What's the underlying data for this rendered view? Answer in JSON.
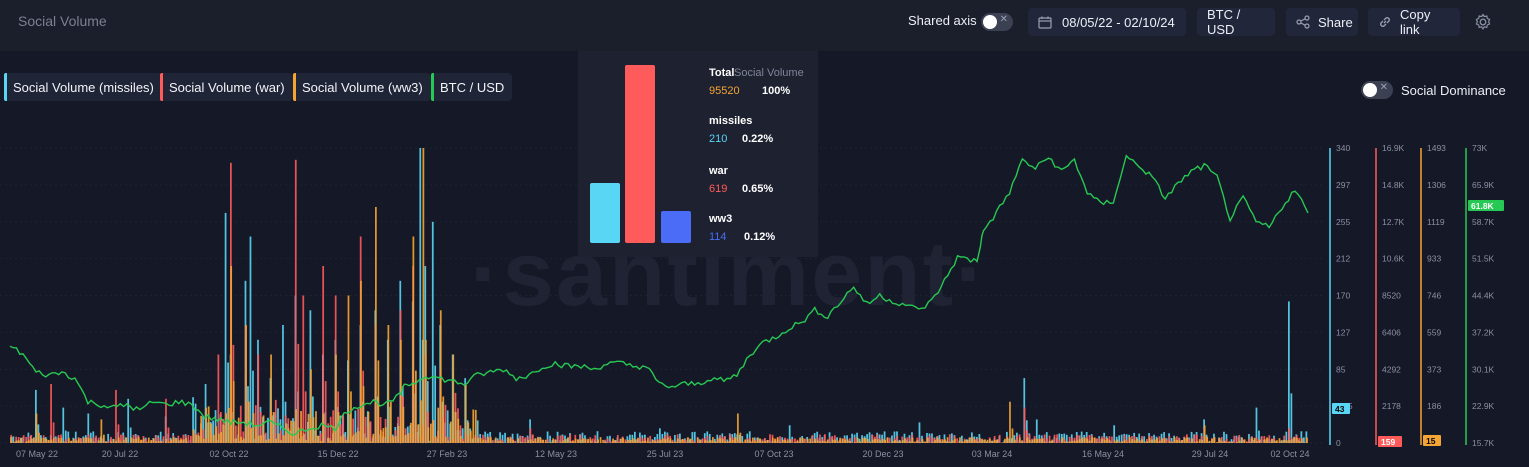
{
  "header": {
    "title": "Social Volume",
    "shared_axis_label": "Shared axis",
    "date_range": "08/05/22 - 02/10/24",
    "pair": "BTC / USD",
    "share_label": "Share",
    "copy_link_label": "Copy link"
  },
  "legend": [
    {
      "label": "Social Volume (missiles)",
      "color": "#5ad6f5"
    },
    {
      "label": "Social Volume (war)",
      "color": "#ff5b5b"
    },
    {
      "label": "Social Volume (ww3)",
      "color": "#f5a534"
    },
    {
      "label": "BTC / USD",
      "color": "#26c953"
    }
  ],
  "social_dominance_label": "Social Dominance",
  "watermark": "·santiment·",
  "tooltip": {
    "total_label": "Total",
    "total_metric": "Social Volume",
    "total_value": "95520",
    "total_pct": "100%",
    "items": [
      {
        "label": "missiles",
        "value": "210",
        "pct": "0.22%",
        "color": "#5ad6f5"
      },
      {
        "label": "war",
        "value": "619",
        "pct": "0.65%",
        "color": "#ff5b5b"
      },
      {
        "label": "ww3",
        "value": "114",
        "pct": "0.12%",
        "color": "#4a6cf7"
      }
    ],
    "bars": [
      {
        "name": "missiles",
        "color": "#5ad6f5"
      },
      {
        "name": "war",
        "color": "#ff5b5b"
      },
      {
        "name": "ww3",
        "color": "#4a6cf7"
      }
    ]
  },
  "chart_data": {
    "type": "bar",
    "x_ticks": [
      "07 May 22",
      "20 Jul 22",
      "02 Oct 22",
      "15 Dec 22",
      "27 Feb 23",
      "12 May 23",
      "25 Jul 23",
      "07 Oct 23",
      "20 Dec 23",
      "03 Mar 24",
      "16 May 24",
      "29 Jul 24",
      "02 Oct 24"
    ],
    "axes": [
      {
        "name": "missiles",
        "color": "#5ad6f5",
        "ticks": [
          "340",
          "297",
          "255",
          "212",
          "170",
          "127",
          "85",
          "42.5",
          "0"
        ],
        "current": "43"
      },
      {
        "name": "war",
        "color": "#ff5b5b",
        "ticks": [
          "16.9K",
          "14.8K",
          "12.7K",
          "10.6K",
          "8520",
          "6406",
          "4292",
          "2178",
          "0"
        ],
        "current": "159"
      },
      {
        "name": "ww3",
        "color": "#f5a534",
        "ticks": [
          "1493",
          "1306",
          "1119",
          "933",
          "746",
          "559",
          "373",
          "186",
          "0"
        ],
        "current": "15"
      },
      {
        "name": "BTC / USD",
        "color": "#26c953",
        "ticks": [
          "73K",
          "65.9K",
          "58.7K",
          "51.5K",
          "44.4K",
          "37.2K",
          "30.1K",
          "22.9K",
          "15.7K"
        ],
        "current": "61.8K"
      }
    ],
    "series": [
      {
        "name": "Social Volume (missiles)",
        "color": "#5ad6f5",
        "spikes": [
          [
            0.02,
            0.18
          ],
          [
            0.04,
            0.12
          ],
          [
            0.06,
            0.1
          ],
          [
            0.09,
            0.15
          ],
          [
            0.12,
            0.09
          ],
          [
            0.15,
            0.2
          ],
          [
            0.165,
            0.78
          ],
          [
            0.17,
            0.3
          ],
          [
            0.18,
            0.55
          ],
          [
            0.185,
            0.7
          ],
          [
            0.19,
            0.35
          ],
          [
            0.2,
            0.22
          ],
          [
            0.21,
            0.4
          ],
          [
            0.22,
            0.5
          ],
          [
            0.23,
            0.45
          ],
          [
            0.24,
            0.3
          ],
          [
            0.25,
            0.35
          ],
          [
            0.26,
            0.28
          ],
          [
            0.27,
            0.4
          ],
          [
            0.28,
            0.45
          ],
          [
            0.29,
            0.35
          ],
          [
            0.3,
            0.55
          ],
          [
            0.31,
            0.48
          ],
          [
            0.315,
            1.0
          ],
          [
            0.32,
            0.6
          ],
          [
            0.325,
            0.75
          ],
          [
            0.33,
            0.4
          ],
          [
            0.34,
            0.3
          ],
          [
            0.35,
            0.22
          ],
          [
            0.4,
            0.08
          ],
          [
            0.5,
            0.05
          ],
          [
            0.6,
            0.06
          ],
          [
            0.7,
            0.07
          ],
          [
            0.78,
            0.22
          ],
          [
            0.79,
            0.08
          ],
          [
            0.85,
            0.06
          ],
          [
            0.92,
            0.08
          ],
          [
            0.96,
            0.12
          ],
          [
            0.985,
            0.48
          ]
        ],
        "base": 0.04
      },
      {
        "name": "Social Volume (war)",
        "color": "#ff5b5b",
        "spikes": [
          [
            0.03,
            0.2
          ],
          [
            0.08,
            0.18
          ],
          [
            0.12,
            0.15
          ],
          [
            0.16,
            0.3
          ],
          [
            0.17,
            0.95
          ],
          [
            0.18,
            0.4
          ],
          [
            0.19,
            0.3
          ],
          [
            0.22,
            0.96
          ],
          [
            0.225,
            0.5
          ],
          [
            0.24,
            0.6
          ],
          [
            0.25,
            0.5
          ],
          [
            0.27,
            0.7
          ],
          [
            0.28,
            0.4
          ],
          [
            0.3,
            0.45
          ],
          [
            0.31,
            0.6
          ],
          [
            0.32,
            0.3
          ],
          [
            0.33,
            0.25
          ],
          [
            0.4,
            0.05
          ],
          [
            0.78,
            0.12
          ],
          [
            0.92,
            0.05
          ],
          [
            0.985,
            0.05
          ]
        ],
        "base": 0.03
      },
      {
        "name": "Social Volume (ww3)",
        "color": "#f5a534",
        "spikes": [
          [
            0.02,
            0.1
          ],
          [
            0.07,
            0.08
          ],
          [
            0.15,
            0.12
          ],
          [
            0.17,
            0.6
          ],
          [
            0.18,
            0.4
          ],
          [
            0.2,
            0.3
          ],
          [
            0.23,
            0.25
          ],
          [
            0.25,
            0.3
          ],
          [
            0.26,
            0.5
          ],
          [
            0.27,
            0.55
          ],
          [
            0.28,
            0.8
          ],
          [
            0.29,
            0.4
          ],
          [
            0.3,
            0.35
          ],
          [
            0.31,
            0.7
          ],
          [
            0.318,
            1.0
          ],
          [
            0.33,
            0.45
          ],
          [
            0.34,
            0.3
          ],
          [
            0.35,
            0.2
          ],
          [
            0.56,
            0.1
          ],
          [
            0.77,
            0.14
          ],
          [
            0.92,
            0.06
          ]
        ],
        "base": 0.02
      }
    ],
    "btc": [
      [
        0.0,
        0.33
      ],
      [
        0.01,
        0.3
      ],
      [
        0.02,
        0.24
      ],
      [
        0.03,
        0.23
      ],
      [
        0.04,
        0.24
      ],
      [
        0.05,
        0.22
      ],
      [
        0.06,
        0.14
      ],
      [
        0.07,
        0.13
      ],
      [
        0.08,
        0.12
      ],
      [
        0.09,
        0.13
      ],
      [
        0.1,
        0.11
      ],
      [
        0.11,
        0.14
      ],
      [
        0.12,
        0.13
      ],
      [
        0.13,
        0.14
      ],
      [
        0.14,
        0.13
      ],
      [
        0.15,
        0.09
      ],
      [
        0.16,
        0.08
      ],
      [
        0.17,
        0.07
      ],
      [
        0.18,
        0.07
      ],
      [
        0.19,
        0.06
      ],
      [
        0.2,
        0.07
      ],
      [
        0.21,
        0.05
      ],
      [
        0.22,
        0.03
      ],
      [
        0.23,
        0.05
      ],
      [
        0.24,
        0.06
      ],
      [
        0.25,
        0.05
      ],
      [
        0.26,
        0.11
      ],
      [
        0.27,
        0.13
      ],
      [
        0.28,
        0.14
      ],
      [
        0.29,
        0.13
      ],
      [
        0.3,
        0.16
      ],
      [
        0.305,
        0.2
      ],
      [
        0.31,
        0.2
      ],
      [
        0.32,
        0.23
      ],
      [
        0.33,
        0.22
      ],
      [
        0.34,
        0.21
      ],
      [
        0.35,
        0.2
      ],
      [
        0.36,
        0.23
      ],
      [
        0.37,
        0.24
      ],
      [
        0.38,
        0.25
      ],
      [
        0.39,
        0.22
      ],
      [
        0.4,
        0.23
      ],
      [
        0.41,
        0.26
      ],
      [
        0.42,
        0.27
      ],
      [
        0.43,
        0.26
      ],
      [
        0.44,
        0.26
      ],
      [
        0.45,
        0.25
      ],
      [
        0.46,
        0.27
      ],
      [
        0.47,
        0.27
      ],
      [
        0.48,
        0.26
      ],
      [
        0.49,
        0.26
      ],
      [
        0.5,
        0.2
      ],
      [
        0.51,
        0.19
      ],
      [
        0.52,
        0.2
      ],
      [
        0.53,
        0.2
      ],
      [
        0.54,
        0.22
      ],
      [
        0.55,
        0.21
      ],
      [
        0.56,
        0.23
      ],
      [
        0.57,
        0.3
      ],
      [
        0.58,
        0.34
      ],
      [
        0.59,
        0.36
      ],
      [
        0.6,
        0.39
      ],
      [
        0.61,
        0.41
      ],
      [
        0.62,
        0.45
      ],
      [
        0.63,
        0.43
      ],
      [
        0.64,
        0.48
      ],
      [
        0.65,
        0.53
      ],
      [
        0.66,
        0.47
      ],
      [
        0.67,
        0.5
      ],
      [
        0.68,
        0.48
      ],
      [
        0.69,
        0.47
      ],
      [
        0.7,
        0.45
      ],
      [
        0.71,
        0.48
      ],
      [
        0.72,
        0.55
      ],
      [
        0.73,
        0.63
      ],
      [
        0.74,
        0.62
      ],
      [
        0.745,
        0.62
      ],
      [
        0.75,
        0.72
      ],
      [
        0.76,
        0.78
      ],
      [
        0.77,
        0.85
      ],
      [
        0.78,
        0.96
      ],
      [
        0.79,
        0.93
      ],
      [
        0.8,
        0.97
      ],
      [
        0.81,
        0.92
      ],
      [
        0.82,
        0.96
      ],
      [
        0.83,
        0.85
      ],
      [
        0.84,
        0.81
      ],
      [
        0.85,
        0.82
      ],
      [
        0.86,
        0.97
      ],
      [
        0.87,
        0.94
      ],
      [
        0.88,
        0.9
      ],
      [
        0.89,
        0.83
      ],
      [
        0.9,
        0.88
      ],
      [
        0.91,
        0.92
      ],
      [
        0.92,
        0.94
      ],
      [
        0.93,
        0.9
      ],
      [
        0.94,
        0.76
      ],
      [
        0.95,
        0.83
      ],
      [
        0.96,
        0.75
      ],
      [
        0.97,
        0.73
      ],
      [
        0.98,
        0.8
      ],
      [
        0.99,
        0.86
      ],
      [
        1.0,
        0.78
      ]
    ]
  }
}
